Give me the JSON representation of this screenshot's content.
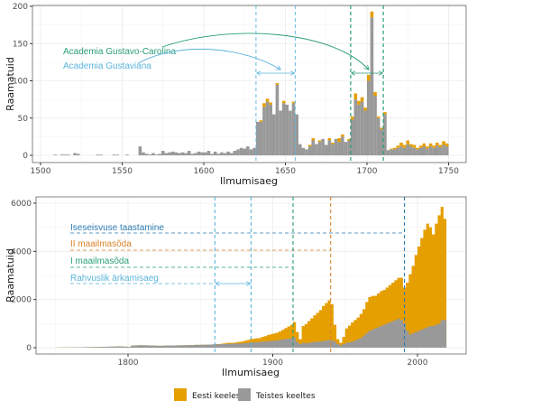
{
  "colors": {
    "estonian": "#e69f00",
    "other": "#999999",
    "green": "#2a9d78",
    "lightblue": "#5ab4dc",
    "orange": "#d9822b",
    "darkblue": "#2b7bb0"
  },
  "legend": {
    "estonian": "Eesti keeles",
    "other": "Teistes keeltes"
  },
  "chart_data": [
    {
      "type": "bar",
      "stacked": true,
      "xlabel": "Ilmumisaeg",
      "ylabel": "Raamatuid",
      "xlim": [
        1500,
        1750
      ],
      "ylim": [
        0,
        200
      ],
      "xticks": [
        "1500",
        "1550",
        "1600",
        "1650",
        "1700",
        "1750"
      ],
      "yticks": [
        "0",
        "50",
        "100",
        "150",
        "200"
      ],
      "x_start": 1500,
      "x_step": 2,
      "series": [
        {
          "name": "Teistes keeltes",
          "values": [
            0,
            0,
            0,
            0,
            1,
            0,
            1,
            1,
            1,
            0,
            3,
            2,
            0,
            0,
            0,
            0,
            0,
            1,
            1,
            0,
            0,
            0,
            1,
            1,
            0,
            0,
            1,
            0,
            0,
            0,
            12,
            4,
            2,
            1,
            3,
            1,
            2,
            6,
            3,
            4,
            5,
            4,
            3,
            4,
            3,
            6,
            2,
            3,
            5,
            4,
            4,
            6,
            2,
            5,
            2,
            4,
            3,
            5,
            3,
            6,
            8,
            10,
            9,
            12,
            8,
            10,
            45,
            45,
            65,
            72,
            68,
            55,
            95,
            60,
            70,
            68,
            60,
            70,
            55,
            15,
            10,
            8,
            12,
            20,
            15,
            18,
            22,
            14,
            20,
            15,
            22,
            18,
            25,
            18,
            20,
            48,
            75,
            68,
            72,
            60,
            100,
            185,
            80,
            50,
            35,
            55,
            7,
            8,
            8,
            10,
            12,
            10,
            15,
            12,
            10,
            8,
            10,
            12,
            9,
            12,
            10,
            13,
            11,
            14,
            12
          ]
        },
        {
          "name": "Eesti keeles",
          "values": [
            0,
            0,
            0,
            0,
            0,
            0,
            0,
            0,
            0,
            0,
            0,
            0,
            0,
            0,
            0,
            0,
            0,
            0,
            0,
            0,
            0,
            0,
            0,
            0,
            0,
            0,
            0,
            0,
            0,
            0,
            0,
            0,
            0,
            0,
            0,
            0,
            0,
            0,
            0,
            0,
            0,
            0,
            0,
            0,
            0,
            0,
            0,
            0,
            0,
            0,
            0,
            0,
            0,
            0,
            0,
            0,
            0,
            0,
            0,
            0,
            0,
            0,
            0,
            0,
            0,
            0,
            0,
            2,
            5,
            4,
            3,
            0,
            2,
            0,
            3,
            0,
            0,
            2,
            0,
            0,
            0,
            0,
            2,
            3,
            0,
            2,
            0,
            0,
            3,
            2,
            0,
            5,
            3,
            0,
            2,
            4,
            8,
            5,
            6,
            4,
            8,
            8,
            5,
            2,
            2,
            3,
            0,
            1,
            2,
            3,
            5,
            4,
            5,
            3,
            4,
            2,
            3,
            4,
            3,
            4,
            3,
            4,
            3,
            5,
            4
          ]
        }
      ],
      "annotations": [
        {
          "label": "Academia Gustavo-Carolina",
          "color_key": "green",
          "from": 1690,
          "to": 1710,
          "arrow_to": 1701
        },
        {
          "label": "Academia Gustaviana",
          "color_key": "lightblue",
          "from": 1632,
          "to": 1656,
          "arrow_to": 1647
        }
      ]
    },
    {
      "type": "area",
      "stacked": true,
      "xlabel": "Ilmumisaeg",
      "ylabel": "Raamatuid",
      "xlim": [
        1750,
        2020
      ],
      "ylim": [
        0,
        6000
      ],
      "xticks": [
        "1800",
        "1900",
        "2000"
      ],
      "yticks": [
        "0",
        "2000",
        "4000",
        "6000"
      ],
      "x_start": 1750,
      "x_step": 2,
      "series": [
        {
          "name": "Teistes keeltes",
          "values": [
            5,
            5,
            8,
            10,
            10,
            12,
            15,
            15,
            18,
            20,
            22,
            25,
            25,
            28,
            30,
            32,
            35,
            38,
            40,
            42,
            45,
            50,
            50,
            45,
            40,
            30,
            90,
            95,
            100,
            105,
            100,
            100,
            95,
            90,
            85,
            80,
            80,
            85,
            90,
            90,
            95,
            95,
            100,
            100,
            105,
            105,
            110,
            110,
            115,
            115,
            120,
            120,
            125,
            130,
            135,
            140,
            140,
            150,
            150,
            160,
            160,
            170,
            170,
            180,
            180,
            190,
            200,
            210,
            220,
            230,
            240,
            250,
            260,
            270,
            280,
            290,
            300,
            320,
            340,
            360,
            380,
            400,
            420,
            250,
            150,
            200,
            180,
            200,
            220,
            240,
            250,
            260,
            280,
            300,
            320,
            300,
            250,
            150,
            100,
            150,
            200,
            220,
            250,
            300,
            350,
            400,
            500,
            600,
            700,
            750,
            800,
            850,
            900,
            950,
            1000,
            1050,
            1100,
            1150,
            1200,
            1150,
            1000,
            700,
            550,
            600,
            650,
            700,
            750,
            800,
            850,
            900,
            900,
            950,
            1000,
            1150,
            1150
          ]
        },
        {
          "name": "Eesti keeles",
          "values": [
            0,
            0,
            0,
            0,
            0,
            0,
            0,
            0,
            0,
            0,
            0,
            0,
            0,
            0,
            0,
            0,
            0,
            0,
            0,
            0,
            0,
            0,
            0,
            0,
            0,
            0,
            0,
            0,
            0,
            0,
            0,
            0,
            0,
            0,
            0,
            0,
            0,
            0,
            0,
            0,
            0,
            0,
            0,
            0,
            0,
            0,
            0,
            0,
            0,
            0,
            0,
            0,
            0,
            0,
            0,
            10,
            10,
            20,
            30,
            40,
            40,
            30,
            50,
            60,
            80,
            100,
            120,
            150,
            150,
            160,
            160,
            200,
            220,
            260,
            280,
            300,
            320,
            350,
            400,
            450,
            500,
            550,
            650,
            400,
            200,
            700,
            800,
            900,
            1000,
            1100,
            1200,
            1300,
            1450,
            1550,
            1650,
            1500,
            700,
            200,
            100,
            300,
            600,
            700,
            800,
            850,
            900,
            1000,
            1100,
            1300,
            1400,
            1400,
            1350,
            1400,
            1450,
            1450,
            1500,
            1550,
            1600,
            1650,
            1700,
            1750,
            1500,
            2000,
            2500,
            2800,
            3200,
            3500,
            3800,
            4100,
            4300,
            4100,
            3800,
            4200,
            4500,
            4700,
            4200
          ]
        }
      ],
      "annotations": [
        {
          "label": "Iseseisvuse taastamine",
          "color_key": "darkblue",
          "years": [
            1991
          ]
        },
        {
          "label": "II maailmasõda",
          "color_key": "orange",
          "years": [
            1940
          ]
        },
        {
          "label": "I maailmasõda",
          "color_key": "green",
          "years": [
            1914
          ]
        },
        {
          "label": "Rahvuslik ärkamisaeg",
          "color_key": "lightblue",
          "years": [
            1860,
            1885
          ]
        }
      ]
    }
  ]
}
